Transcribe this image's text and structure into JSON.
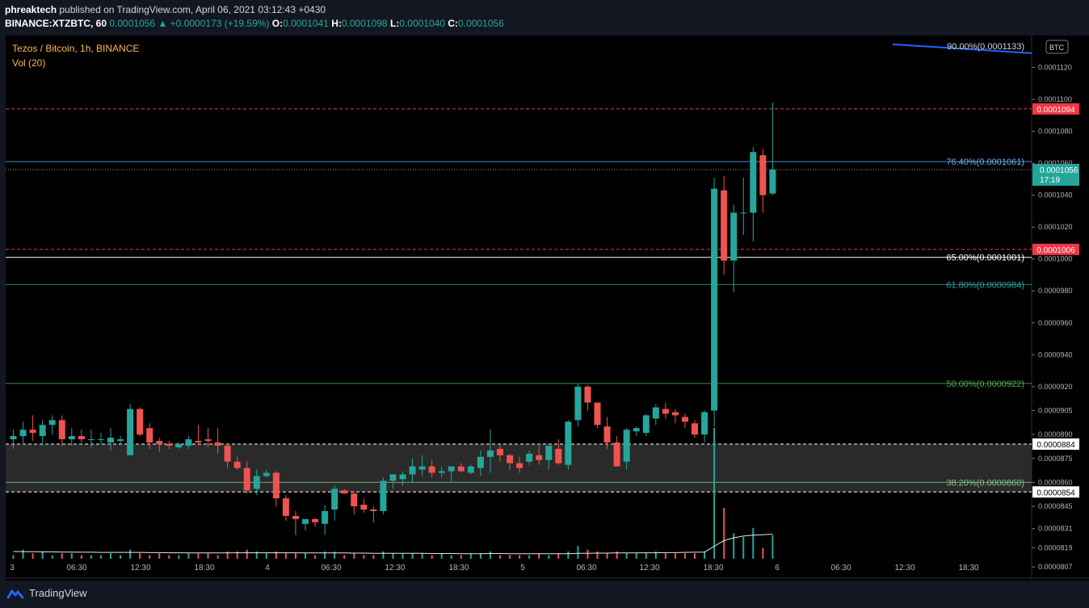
{
  "header": {
    "publisher": "phreaktech",
    "published_text": "published on TradingView.com, April 06, 2021 03:12:43 +0430",
    "symbol_line": "BINANCE:XTZBTC, 60",
    "last": "0.0001056",
    "change": "▲ +0.0000173 (+19.59%)",
    "o_label": "O:",
    "o_value": "0.0001041",
    "h_label": "H:",
    "h_value": "0.0001098",
    "l_label": "L:",
    "l_value": "0.0001040",
    "c_label": "C:",
    "c_value": "0.0001056"
  },
  "legend": {
    "title": "Tezos / Bitcoin, 1h, BINANCE",
    "volume": "Vol (20)"
  },
  "footer": {
    "brand": "TradingView"
  },
  "colors": {
    "background": "#000000",
    "up": "#26a69a",
    "down": "#ef5350",
    "volume_ma": "#ffffff",
    "fib_top": "#2962ff",
    "fib_76": "#64b5f6",
    "fib_65": "#ffffff",
    "fib_61": "#26a69a",
    "fib_50": "#4caf50",
    "fib_38": "#81c784",
    "red_line": "#f23645",
    "legend_text": "#ffb74d"
  },
  "chart_data": {
    "type": "candlestick",
    "title": "Tezos / Bitcoin, 1h, BINANCE",
    "currency": "BTC",
    "ylim": [
      8e-05,
      0.000114
    ],
    "y_ticks": [
      "0.0001120",
      "0.0001100",
      "0.0001080",
      "0.0001060",
      "0.0001040",
      "0.0001020",
      "0.0001000",
      "0.0000980",
      "0.0000960",
      "0.0000940",
      "0.0000920",
      "0.0000905",
      "0.0000890",
      "0.0000875",
      "0.0000860",
      "0.0000845",
      "0.0000831",
      "0.0000819",
      "0.0000807"
    ],
    "x_ticks": [
      "3",
      "06:30",
      "12:30",
      "18:30",
      "4",
      "06:30",
      "12:30",
      "18:30",
      "5",
      "06:30",
      "12:30",
      "18:30",
      "6",
      "06:30",
      "12:30",
      "18:30"
    ],
    "candles": [
      {
        "o": 8.87e-05,
        "h": 8.93e-05,
        "l": 8.81e-05,
        "c": 8.89e-05
      },
      {
        "o": 8.89e-05,
        "h": 8.98e-05,
        "l": 8.84e-05,
        "c": 8.93e-05
      },
      {
        "o": 8.93e-05,
        "h": 9.02e-05,
        "l": 8.86e-05,
        "c": 8.91e-05
      },
      {
        "o": 8.89e-05,
        "h": 8.99e-05,
        "l": 8.83e-05,
        "c": 8.96e-05
      },
      {
        "o": 8.96e-05,
        "h": 9.02e-05,
        "l": 8.9e-05,
        "c": 8.99e-05
      },
      {
        "o": 8.99e-05,
        "h": 9.02e-05,
        "l": 8.83e-05,
        "c": 8.87e-05
      },
      {
        "o": 8.87e-05,
        "h": 8.94e-05,
        "l": 8.83e-05,
        "c": 8.89e-05
      },
      {
        "o": 8.89e-05,
        "h": 8.93e-05,
        "l": 8.85e-05,
        "c": 8.87e-05
      },
      {
        "o": 8.87e-05,
        "h": 8.93e-05,
        "l": 8.82e-05,
        "c": 8.87e-05
      },
      {
        "o": 8.87e-05,
        "h": 8.91e-05,
        "l": 8.84e-05,
        "c": 8.87e-05
      },
      {
        "o": 8.85e-05,
        "h": 8.94e-05,
        "l": 8.8e-05,
        "c": 8.88e-05
      },
      {
        "o": 8.86e-05,
        "h": 8.89e-05,
        "l": 8.84e-05,
        "c": 8.87e-05
      },
      {
        "o": 8.77e-05,
        "h": 9.09e-05,
        "l": 8.77e-05,
        "c": 9.06e-05
      },
      {
        "o": 9.06e-05,
        "h": 9.07e-05,
        "l": 8.89e-05,
        "c": 8.9e-05
      },
      {
        "o": 8.94e-05,
        "h": 8.97e-05,
        "l": 8.81e-05,
        "c": 8.85e-05
      },
      {
        "o": 8.86e-05,
        "h": 8.88e-05,
        "l": 8.79e-05,
        "c": 8.84e-05
      },
      {
        "o": 8.84e-05,
        "h": 8.86e-05,
        "l": 8.81e-05,
        "c": 8.83e-05
      },
      {
        "o": 8.82e-05,
        "h": 8.85e-05,
        "l": 8.81e-05,
        "c": 8.84e-05
      },
      {
        "o": 8.83e-05,
        "h": 8.89e-05,
        "l": 8.81e-05,
        "c": 8.87e-05
      },
      {
        "o": 8.86e-05,
        "h": 8.96e-05,
        "l": 8.84e-05,
        "c": 8.85e-05
      },
      {
        "o": 8.87e-05,
        "h": 8.94e-05,
        "l": 8.82e-05,
        "c": 8.86e-05
      },
      {
        "o": 8.85e-05,
        "h": 8.94e-05,
        "l": 8.78e-05,
        "c": 8.83e-05
      },
      {
        "o": 8.83e-05,
        "h": 8.84e-05,
        "l": 8.69e-05,
        "c": 8.73e-05
      },
      {
        "o": 8.73e-05,
        "h": 8.76e-05,
        "l": 8.68e-05,
        "c": 8.69e-05
      },
      {
        "o": 8.69e-05,
        "h": 8.73e-05,
        "l": 8.53e-05,
        "c": 8.55e-05
      },
      {
        "o": 8.56e-05,
        "h": 8.68e-05,
        "l": 8.52e-05,
        "c": 8.64e-05
      },
      {
        "o": 8.64e-05,
        "h": 8.68e-05,
        "l": 8.63e-05,
        "c": 8.66e-05
      },
      {
        "o": 8.66e-05,
        "h": 8.67e-05,
        "l": 8.45e-05,
        "c": 8.5e-05
      },
      {
        "o": 8.5e-05,
        "h": 8.52e-05,
        "l": 8.36e-05,
        "c": 8.39e-05
      },
      {
        "o": 8.39e-05,
        "h": 8.42e-05,
        "l": 8.27e-05,
        "c": 8.37e-05
      },
      {
        "o": 8.34e-05,
        "h": 8.36e-05,
        "l": 8.3e-05,
        "c": 8.37e-05
      },
      {
        "o": 8.37e-05,
        "h": 8.38e-05,
        "l": 8.32e-05,
        "c": 8.35e-05
      },
      {
        "o": 8.34e-05,
        "h": 8.46e-05,
        "l": 8.27e-05,
        "c": 8.42e-05
      },
      {
        "o": 8.43e-05,
        "h": 8.58e-05,
        "l": 8.36e-05,
        "c": 8.56e-05
      },
      {
        "o": 8.55e-05,
        "h": 8.56e-05,
        "l": 8.53e-05,
        "c": 8.53e-05
      },
      {
        "o": 8.53e-05,
        "h": 8.54e-05,
        "l": 8.4e-05,
        "c": 8.45e-05
      },
      {
        "o": 8.46e-05,
        "h": 8.5e-05,
        "l": 8.41e-05,
        "c": 8.43e-05
      },
      {
        "o": 8.43e-05,
        "h": 8.45e-05,
        "l": 8.35e-05,
        "c": 8.42e-05
      },
      {
        "o": 8.42e-05,
        "h": 8.63e-05,
        "l": 8.4e-05,
        "c": 8.61e-05
      },
      {
        "o": 8.61e-05,
        "h": 8.65e-05,
        "l": 8.56e-05,
        "c": 8.65e-05
      },
      {
        "o": 8.62e-05,
        "h": 8.67e-05,
        "l": 8.58e-05,
        "c": 8.65e-05
      },
      {
        "o": 8.65e-05,
        "h": 8.75e-05,
        "l": 8.6e-05,
        "c": 8.7e-05
      },
      {
        "o": 8.68e-05,
        "h": 8.77e-05,
        "l": 8.64e-05,
        "c": 8.7e-05
      },
      {
        "o": 8.7e-05,
        "h": 8.74e-05,
        "l": 8.63e-05,
        "c": 8.66e-05
      },
      {
        "o": 8.66e-05,
        "h": 8.7e-05,
        "l": 8.63e-05,
        "c": 8.67e-05
      },
      {
        "o": 8.67e-05,
        "h": 8.7e-05,
        "l": 8.6e-05,
        "c": 8.7e-05
      },
      {
        "o": 8.7e-05,
        "h": 8.72e-05,
        "l": 8.66e-05,
        "c": 8.67e-05
      },
      {
        "o": 8.66e-05,
        "h": 8.71e-05,
        "l": 8.65e-05,
        "c": 8.7e-05
      },
      {
        "o": 8.69e-05,
        "h": 8.8e-05,
        "l": 8.64e-05,
        "c": 8.76e-05
      },
      {
        "o": 8.76e-05,
        "h": 8.93e-05,
        "l": 8.66e-05,
        "c": 8.8e-05
      },
      {
        "o": 8.81e-05,
        "h": 8.84e-05,
        "l": 8.73e-05,
        "c": 8.77e-05
      },
      {
        "o": 8.77e-05,
        "h": 8.78e-05,
        "l": 8.68e-05,
        "c": 8.72e-05
      },
      {
        "o": 8.72e-05,
        "h": 8.76e-05,
        "l": 8.66e-05,
        "c": 8.69e-05
      },
      {
        "o": 8.73e-05,
        "h": 8.8e-05,
        "l": 8.71e-05,
        "c": 8.78e-05
      },
      {
        "o": 8.77e-05,
        "h": 8.83e-05,
        "l": 8.71e-05,
        "c": 8.74e-05
      },
      {
        "o": 8.74e-05,
        "h": 8.83e-05,
        "l": 8.68e-05,
        "c": 8.83e-05
      },
      {
        "o": 8.81e-05,
        "h": 8.87e-05,
        "l": 8.71e-05,
        "c": 8.72e-05
      },
      {
        "o": 8.71e-05,
        "h": 8.99e-05,
        "l": 8.68e-05,
        "c": 8.98e-05
      },
      {
        "o": 8.99e-05,
        "h": 9.22e-05,
        "l": 8.95e-05,
        "c": 9.2e-05
      },
      {
        "o": 9.2e-05,
        "h": 9.21e-05,
        "l": 9.05e-05,
        "c": 9.1e-05
      },
      {
        "o": 9.1e-05,
        "h": 9.1e-05,
        "l": 8.94e-05,
        "c": 8.96e-05
      },
      {
        "o": 8.95e-05,
        "h": 9.01e-05,
        "l": 8.81e-05,
        "c": 8.85e-05
      },
      {
        "o": 8.85e-05,
        "h": 8.89e-05,
        "l": 8.71e-05,
        "c": 8.7e-05
      },
      {
        "o": 8.73e-05,
        "h": 8.94e-05,
        "l": 8.68e-05,
        "c": 8.93e-05
      },
      {
        "o": 8.92e-05,
        "h": 8.95e-05,
        "l": 8.89e-05,
        "c": 8.94e-05
      },
      {
        "o": 8.91e-05,
        "h": 9.03e-05,
        "l": 8.89e-05,
        "c": 9.02e-05
      },
      {
        "o": 9e-05,
        "h": 9.09e-05,
        "l": 8.96e-05,
        "c": 9.07e-05
      },
      {
        "o": 9.06e-05,
        "h": 9.1e-05,
        "l": 9e-05,
        "c": 9.03e-05
      },
      {
        "o": 9.04e-05,
        "h": 9.06e-05,
        "l": 8.97e-05,
        "c": 9.02e-05
      },
      {
        "o": 9.01e-05,
        "h": 9.03e-05,
        "l": 8.94e-05,
        "c": 8.98e-05
      },
      {
        "o": 8.97e-05,
        "h": 8.99e-05,
        "l": 8.88e-05,
        "c": 8.9e-05
      },
      {
        "o": 8.9e-05,
        "h": 9.05e-05,
        "l": 8.85e-05,
        "c": 9.04e-05
      },
      {
        "o": 9.05e-05,
        "h": 0.0001051,
        "l": 8.95e-05,
        "c": 0.0001044
      },
      {
        "o": 0.0001043,
        "h": 0.0001052,
        "l": 9.9e-05,
        "c": 9.99e-05
      },
      {
        "o": 9.99e-05,
        "h": 0.0001034,
        "l": 9.79e-05,
        "c": 0.0001029
      },
      {
        "o": 0.0001029,
        "h": 0.0001051,
        "l": 0.0001015,
        "c": 0.0001029
      },
      {
        "o": 0.0001029,
        "h": 0.000107,
        "l": 0.0001011,
        "c": 0.0001067
      },
      {
        "o": 0.0001065,
        "h": 0.0001069,
        "l": 0.0001029,
        "c": 0.000104
      },
      {
        "o": 0.0001041,
        "h": 0.0001098,
        "l": 0.000104,
        "c": 0.0001056
      }
    ],
    "volumes": [
      2,
      5,
      3,
      4,
      2,
      3,
      3,
      2,
      2,
      2,
      3,
      2,
      5,
      3,
      2,
      3,
      2,
      2,
      3,
      3,
      3,
      2,
      4,
      4,
      5,
      4,
      3,
      4,
      3,
      3,
      3,
      2,
      4,
      4,
      2,
      3,
      2,
      2,
      4,
      3,
      3,
      3,
      3,
      2,
      3,
      2,
      2,
      3,
      3,
      4,
      2,
      2,
      2,
      2,
      3,
      2,
      3,
      4,
      7,
      5,
      4,
      3,
      4,
      3,
      3,
      3,
      4,
      3,
      3,
      3,
      3,
      4,
      72,
      28,
      14,
      12,
      17,
      6,
      13
    ],
    "volume_ma": [
      4.0,
      3.9,
      3.9,
      3.8,
      3.8,
      3.7,
      3.7,
      3.6,
      3.6,
      3.5,
      3.5,
      3.5,
      3.5,
      3.5,
      3.4,
      3.4,
      3.3,
      3.3,
      3.2,
      3.2,
      3.2,
      3.2,
      3.2,
      3.3,
      3.3,
      3.3,
      3.3,
      3.3,
      3.3,
      3.3,
      3.2,
      3.2,
      3.2,
      3.2,
      3.2,
      3.1,
      3.1,
      3.0,
      3.0,
      3.0,
      3.0,
      3.0,
      3.0,
      2.9,
      2.9,
      2.9,
      2.8,
      2.8,
      2.8,
      2.9,
      2.9,
      2.8,
      2.8,
      2.8,
      2.8,
      2.8,
      2.8,
      2.8,
      3.0,
      3.0,
      3.1,
      3.1,
      3.2,
      3.2,
      3.2,
      3.3,
      3.3,
      3.4,
      3.4,
      3.5,
      3.6,
      3.7,
      6.9,
      10.0,
      11.5,
      12.5,
      13.0,
      13.2,
      13.5
    ],
    "fib_levels": [
      {
        "label": "90.00%(0.0001133)",
        "value": 0.0001133
      },
      {
        "label": "76.40%(0.0001061)",
        "value": 0.0001061
      },
      {
        "label": "65.00%(0.0001001)",
        "value": 0.0001001
      },
      {
        "label": "61.80%(0.0000984)",
        "value": 9.84e-05
      },
      {
        "label": "50.00%(0.0000922)",
        "value": 9.22e-05
      },
      {
        "label": "38.20%(0.0000860)",
        "value": 8.6e-05
      }
    ],
    "horizontal_lines": [
      {
        "value": 0.0001094,
        "label": "0.0001094",
        "style": "red-dashed"
      },
      {
        "value": 0.0001006,
        "label": "0.0001006",
        "style": "red-dashed"
      },
      {
        "value": 8.84e-05,
        "label": "0.0000884",
        "style": "white-dashed"
      },
      {
        "value": 8.54e-05,
        "label": "0.0000854",
        "style": "white-dashed"
      }
    ],
    "zone": {
      "from": 8.54e-05,
      "to": 8.84e-05
    },
    "last_price": {
      "value": 0.0001056,
      "label": "0.0001056",
      "countdown": "17:19"
    }
  }
}
